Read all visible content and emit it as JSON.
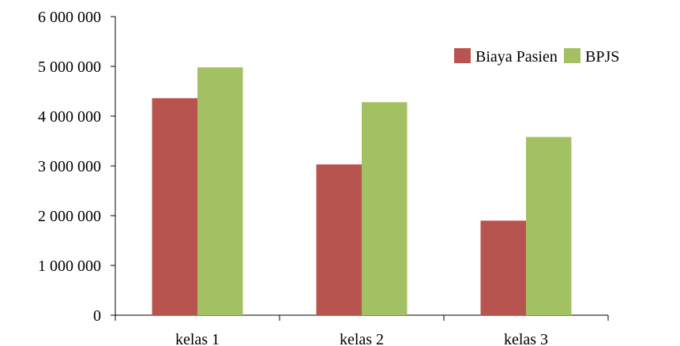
{
  "chart_data": {
    "type": "bar",
    "categories": [
      "kelas 1",
      "kelas 2",
      "kelas 3"
    ],
    "series": [
      {
        "name": "Biaya Pasien",
        "color": "#B85450",
        "values": [
          4360000,
          3030000,
          1900000
        ]
      },
      {
        "name": "BPJS",
        "color": "#A3C163",
        "values": [
          4980000,
          4280000,
          3580000
        ]
      }
    ],
    "y_ticks": [
      "0",
      "1 000 000",
      "2 000 000",
      "3 000 000",
      "4 000 000",
      "5 000 000",
      "6 000 000"
    ],
    "ylim": [
      0,
      6000000
    ],
    "legend_position": "top-right",
    "grid": false
  }
}
